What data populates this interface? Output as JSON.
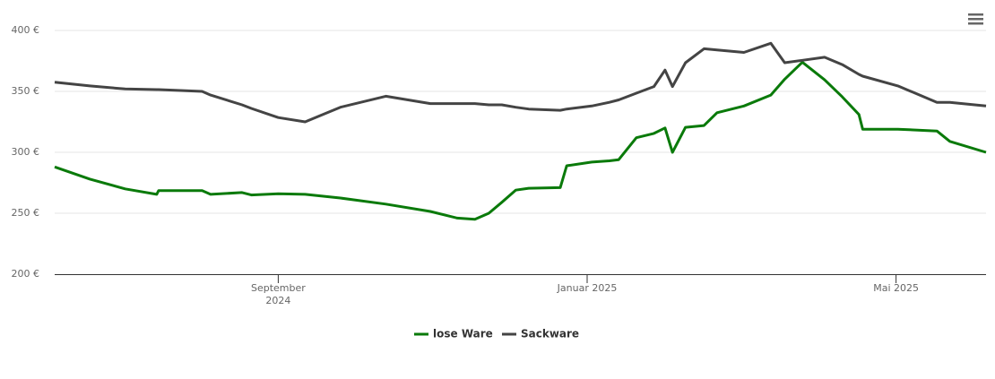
{
  "chart_data": {
    "type": "line",
    "x": [
      2024.426,
      2024.464,
      2024.502,
      2024.536,
      2024.538,
      2024.585,
      2024.594,
      2024.628,
      2024.638,
      2024.667,
      2024.696,
      2024.734,
      2024.783,
      2024.831,
      2024.86,
      2024.879,
      2024.894,
      2024.908,
      2024.923,
      2024.937,
      2024.971,
      2024.978,
      2025.005,
      2025.024,
      2025.034,
      2025.053,
      2025.072,
      2025.084,
      2025.092,
      2025.106,
      2025.126,
      2025.14,
      2025.169,
      2025.198,
      2025.213,
      2025.232,
      2025.256,
      2025.275,
      2025.293,
      2025.297,
      2025.335,
      2025.377,
      2025.391,
      2025.43
    ],
    "series": [
      {
        "name": "lose Ware",
        "color": "#0a7a0a",
        "values": [
          288,
          278,
          270,
          265.5,
          268.5,
          268.5,
          265.5,
          267,
          265,
          266,
          265.5,
          262.5,
          257.5,
          251.5,
          246,
          245,
          250,
          259,
          269,
          270.5,
          271,
          289,
          292,
          293,
          294,
          312,
          315.5,
          320,
          300,
          320.5,
          322,
          332.5,
          338,
          347,
          360,
          374,
          359.5,
          345.5,
          331,
          319,
          319,
          317.5,
          309,
          300
        ]
      },
      {
        "name": "Sackware",
        "color": "#444444",
        "values": [
          357.5,
          354.5,
          352,
          351.5,
          351.5,
          350,
          347,
          339,
          336,
          328.5,
          325,
          337,
          346,
          340,
          340,
          340,
          339,
          339,
          337,
          335.5,
          334.5,
          335.5,
          338,
          341,
          343,
          348.5,
          354,
          367.5,
          354,
          373.5,
          385,
          384,
          382,
          389.5,
          373.5,
          375.5,
          378,
          372,
          364,
          362.5,
          354.5,
          341,
          341,
          338
        ]
      }
    ],
    "xlim": [
      2024.426,
      2025.43
    ],
    "xticks": [
      {
        "value": 2024.667,
        "label": "September 2024"
      },
      {
        "value": 2025,
        "label": "Januar 2025"
      },
      {
        "value": 2025.333,
        "label": "Mai 2025"
      }
    ],
    "ylim": [
      200,
      400
    ],
    "yticks": [
      {
        "value": 200,
        "label": "200 €"
      },
      {
        "value": 250,
        "label": "250 €"
      },
      {
        "value": 300,
        "label": "300 €"
      },
      {
        "value": 350,
        "label": "350 €"
      },
      {
        "value": 400,
        "label": "400 €"
      }
    ],
    "grid": true
  }
}
